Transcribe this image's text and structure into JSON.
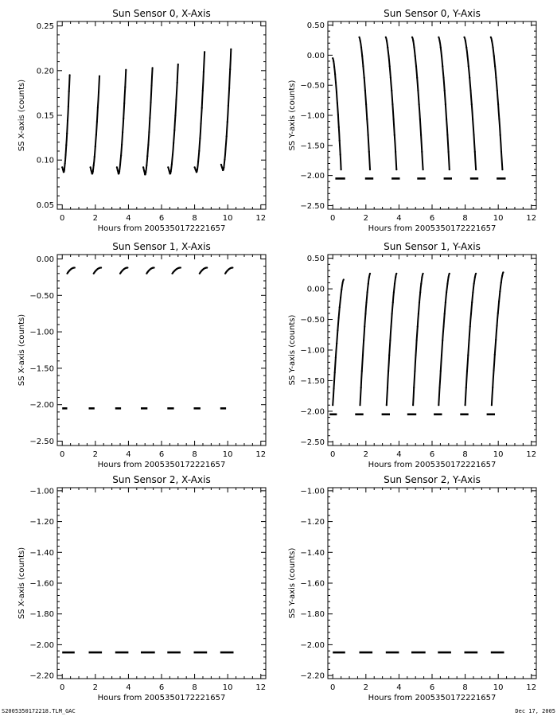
{
  "footer": {
    "left": "S2005350172218.TLM_GAC",
    "right": "Dec 17, 2005"
  },
  "colors": {
    "line": "#000000",
    "background": "#ffffff"
  },
  "chart_data": [
    {
      "type": "scatter",
      "title": "Sun Sensor 0, X-Axis",
      "xlabel": "Hours from  2005350172221657",
      "ylabel": "SS X-axis (counts)",
      "xlim": [
        -0.3,
        12.3
      ],
      "ylim": [
        0.045,
        0.255
      ],
      "xticks": [
        "0",
        "2",
        "4",
        "6",
        "8",
        "10",
        "12"
      ],
      "yticks": [
        "0.05",
        "0.10",
        "0.15",
        "0.20",
        "0.25"
      ],
      "grid": false,
      "series": [
        {
          "pattern": "dip-then-rise",
          "segments": [
            {
              "x_start": 0.0,
              "x_end": 0.45,
              "y_start": 0.092,
              "y_min": 0.086,
              "y_end": 0.195
            },
            {
              "x_start": 1.7,
              "x_end": 2.25,
              "y_start": 0.092,
              "y_min": 0.084,
              "y_end": 0.194
            },
            {
              "x_start": 3.3,
              "x_end": 3.85,
              "y_start": 0.092,
              "y_min": 0.084,
              "y_end": 0.201
            },
            {
              "x_start": 4.9,
              "x_end": 5.45,
              "y_start": 0.092,
              "y_min": 0.083,
              "y_end": 0.203
            },
            {
              "x_start": 6.4,
              "x_end": 7.0,
              "y_start": 0.092,
              "y_min": 0.084,
              "y_end": 0.207
            },
            {
              "x_start": 8.0,
              "x_end": 8.6,
              "y_start": 0.092,
              "y_min": 0.086,
              "y_end": 0.221
            },
            {
              "x_start": 9.6,
              "x_end": 10.2,
              "y_start": 0.095,
              "y_min": 0.088,
              "y_end": 0.224
            }
          ]
        }
      ]
    },
    {
      "type": "scatter",
      "title": "Sun Sensor 0, Y-Axis",
      "xlabel": "Hours from  2005350172221657",
      "ylabel": "SS Y-axis (counts)",
      "xlim": [
        -0.3,
        12.3
      ],
      "ylim": [
        -2.56,
        0.56
      ],
      "xticks": [
        "0",
        "2",
        "4",
        "6",
        "8",
        "10",
        "12"
      ],
      "yticks": [
        "0.50",
        "0.00",
        "-0.50",
        "-1.00",
        "-1.50",
        "-2.00",
        "-2.50"
      ],
      "grid": false,
      "series": [
        {
          "pattern": "falling",
          "segments": [
            {
              "x_start": 0.0,
              "x_end": 0.5,
              "y_start": -0.05,
              "y_end": -1.9
            },
            {
              "x_start": 1.6,
              "x_end": 2.25,
              "y_start": 0.3,
              "y_end": -1.9
            },
            {
              "x_start": 3.2,
              "x_end": 3.85,
              "y_start": 0.3,
              "y_end": -1.9
            },
            {
              "x_start": 4.8,
              "x_end": 5.45,
              "y_start": 0.3,
              "y_end": -1.9
            },
            {
              "x_start": 6.4,
              "x_end": 7.05,
              "y_start": 0.3,
              "y_end": -1.9
            },
            {
              "x_start": 7.95,
              "x_end": 8.65,
              "y_start": 0.3,
              "y_end": -1.9
            },
            {
              "x_start": 9.55,
              "x_end": 10.25,
              "y_start": 0.3,
              "y_end": -1.9
            }
          ]
        },
        {
          "pattern": "flat",
          "y": -2.05,
          "segments": [
            {
              "x_start": 0.15,
              "x_end": 0.75
            },
            {
              "x_start": 1.95,
              "x_end": 2.45
            },
            {
              "x_start": 3.55,
              "x_end": 4.05
            },
            {
              "x_start": 5.1,
              "x_end": 5.6
            },
            {
              "x_start": 6.7,
              "x_end": 7.2
            },
            {
              "x_start": 8.3,
              "x_end": 8.8
            },
            {
              "x_start": 9.9,
              "x_end": 10.45
            }
          ]
        }
      ]
    },
    {
      "type": "scatter",
      "title": "Sun Sensor 1, X-Axis",
      "xlabel": "Hours from  2005350172221657",
      "ylabel": "SS X-axis (counts)",
      "xlim": [
        -0.3,
        12.3
      ],
      "ylim": [
        -2.56,
        0.06
      ],
      "xticks": [
        "0",
        "2",
        "4",
        "6",
        "8",
        "10",
        "12"
      ],
      "yticks": [
        "0.00",
        "-0.50",
        "-1.00",
        "-1.50",
        "-2.00",
        "-2.50"
      ],
      "grid": false,
      "series": [
        {
          "pattern": "rise-flatten",
          "segments": [
            {
              "x_start": 0.3,
              "x_end": 0.75,
              "y_start": -0.2,
              "y_end": -0.12
            },
            {
              "x_start": 1.9,
              "x_end": 2.35,
              "y_start": -0.2,
              "y_end": -0.12
            },
            {
              "x_start": 3.5,
              "x_end": 3.95,
              "y_start": -0.2,
              "y_end": -0.12
            },
            {
              "x_start": 5.1,
              "x_end": 5.55,
              "y_start": -0.2,
              "y_end": -0.12
            },
            {
              "x_start": 6.65,
              "x_end": 7.15,
              "y_start": -0.2,
              "y_end": -0.12
            },
            {
              "x_start": 8.3,
              "x_end": 8.75,
              "y_start": -0.2,
              "y_end": -0.12
            },
            {
              "x_start": 9.85,
              "x_end": 10.3,
              "y_start": -0.2,
              "y_end": -0.12
            }
          ]
        },
        {
          "pattern": "flat",
          "y": -2.05,
          "segments": [
            {
              "x_start": 0.0,
              "x_end": 0.3
            },
            {
              "x_start": 1.6,
              "x_end": 1.95
            },
            {
              "x_start": 3.2,
              "x_end": 3.55
            },
            {
              "x_start": 4.75,
              "x_end": 5.15
            },
            {
              "x_start": 6.35,
              "x_end": 6.75
            },
            {
              "x_start": 7.95,
              "x_end": 8.35
            },
            {
              "x_start": 9.55,
              "x_end": 9.9
            }
          ]
        }
      ]
    },
    {
      "type": "scatter",
      "title": "Sun Sensor 1, Y-Axis",
      "xlabel": "Hours from  2005350172221657",
      "ylabel": "SS Y-axis (counts)",
      "xlim": [
        -0.3,
        12.3
      ],
      "ylim": [
        -2.56,
        0.56
      ],
      "xticks": [
        "0",
        "2",
        "4",
        "6",
        "8",
        "10",
        "12"
      ],
      "yticks": [
        "0.50",
        "0.00",
        "-0.50",
        "-1.00",
        "-1.50",
        "-2.00",
        "-2.50"
      ],
      "grid": false,
      "series": [
        {
          "pattern": "rising",
          "segments": [
            {
              "x_start": 0.0,
              "x_end": 0.65,
              "y_start": -1.9,
              "y_end": 0.15
            },
            {
              "x_start": 1.65,
              "x_end": 2.25,
              "y_start": -1.9,
              "y_end": 0.25
            },
            {
              "x_start": 3.25,
              "x_end": 3.85,
              "y_start": -1.9,
              "y_end": 0.25
            },
            {
              "x_start": 4.85,
              "x_end": 5.45,
              "y_start": -1.9,
              "y_end": 0.25
            },
            {
              "x_start": 6.4,
              "x_end": 7.05,
              "y_start": -1.9,
              "y_end": 0.25
            },
            {
              "x_start": 8.0,
              "x_end": 8.65,
              "y_start": -1.9,
              "y_end": 0.25
            },
            {
              "x_start": 9.6,
              "x_end": 10.3,
              "y_start": -1.9,
              "y_end": 0.27
            }
          ]
        },
        {
          "pattern": "flat",
          "y": -2.05,
          "segments": [
            {
              "x_start": -0.2,
              "x_end": 0.25
            },
            {
              "x_start": 1.35,
              "x_end": 1.85
            },
            {
              "x_start": 2.95,
              "x_end": 3.45
            },
            {
              "x_start": 4.5,
              "x_end": 5.05
            },
            {
              "x_start": 6.1,
              "x_end": 6.6
            },
            {
              "x_start": 7.7,
              "x_end": 8.2
            },
            {
              "x_start": 9.3,
              "x_end": 9.8
            }
          ]
        }
      ]
    },
    {
      "type": "scatter",
      "title": "Sun Sensor 2, X-Axis",
      "xlabel": "Hours from  2005350172221657",
      "ylabel": "SS X-axis (counts)",
      "xlim": [
        -0.3,
        12.3
      ],
      "ylim": [
        -2.22,
        -0.98
      ],
      "xticks": [
        "0",
        "2",
        "4",
        "6",
        "8",
        "10",
        "12"
      ],
      "yticks": [
        "-1.00",
        "-1.20",
        "-1.40",
        "-1.60",
        "-1.80",
        "-2.00",
        "-2.20"
      ],
      "grid": false,
      "series": [
        {
          "pattern": "flat",
          "y": -2.05,
          "segments": [
            {
              "x_start": 0.0,
              "x_end": 0.75
            },
            {
              "x_start": 1.6,
              "x_end": 2.4
            },
            {
              "x_start": 3.2,
              "x_end": 4.0
            },
            {
              "x_start": 4.75,
              "x_end": 5.6
            },
            {
              "x_start": 6.35,
              "x_end": 7.15
            },
            {
              "x_start": 7.95,
              "x_end": 8.75
            },
            {
              "x_start": 9.55,
              "x_end": 10.35
            }
          ]
        }
      ]
    },
    {
      "type": "scatter",
      "title": "Sun Sensor 2, Y-Axis",
      "xlabel": "Hours from  2005350172221657",
      "ylabel": "SS Y-axis (counts)",
      "xlim": [
        -0.3,
        12.3
      ],
      "ylim": [
        -2.22,
        -0.98
      ],
      "xticks": [
        "0",
        "2",
        "4",
        "6",
        "8",
        "10",
        "12"
      ],
      "yticks": [
        "-1.00",
        "-1.20",
        "-1.40",
        "-1.60",
        "-1.80",
        "-2.00",
        "-2.20"
      ],
      "grid": false,
      "series": [
        {
          "pattern": "flat",
          "y": -2.05,
          "segments": [
            {
              "x_start": 0.0,
              "x_end": 0.75
            },
            {
              "x_start": 1.6,
              "x_end": 2.4
            },
            {
              "x_start": 3.2,
              "x_end": 4.0
            },
            {
              "x_start": 4.75,
              "x_end": 5.6
            },
            {
              "x_start": 6.35,
              "x_end": 7.15
            },
            {
              "x_start": 7.95,
              "x_end": 8.75
            },
            {
              "x_start": 9.55,
              "x_end": 10.35
            }
          ]
        }
      ]
    }
  ]
}
